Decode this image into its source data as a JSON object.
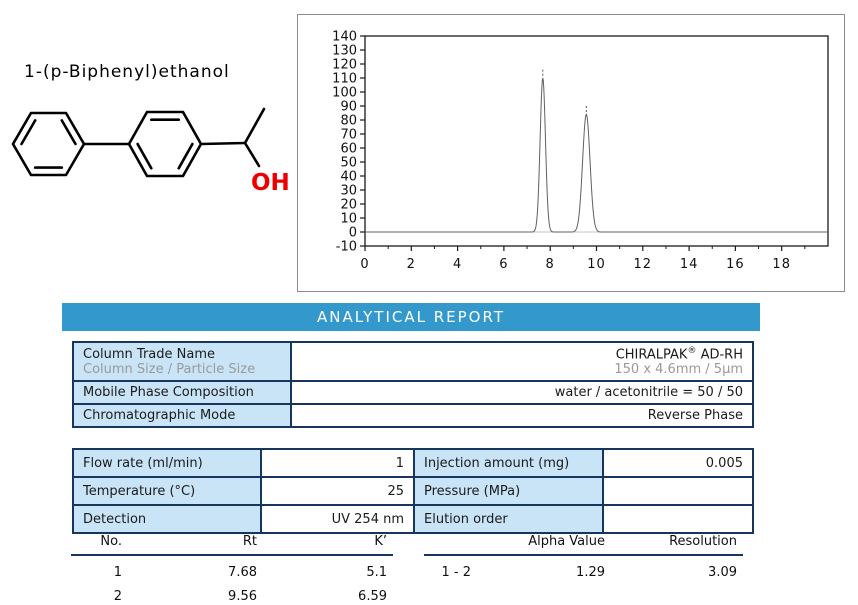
{
  "compound": {
    "name": "1-(p-Biphenyl)ethanol",
    "hydroxyl_label": "OH",
    "hydroxyl_color": "#ee0000"
  },
  "report": {
    "title": "ANALYTICAL REPORT",
    "header_bg": "#3399cc"
  },
  "chart_data": {
    "type": "line",
    "title": "",
    "xlabel": "",
    "ylabel": "",
    "xlim": [
      0,
      20
    ],
    "ylim": [
      -10,
      140
    ],
    "x_major_ticks": [
      0,
      2,
      4,
      6,
      8,
      10,
      12,
      14,
      16,
      18
    ],
    "x_minor_ticks": [
      1,
      3,
      5,
      7,
      9,
      11,
      13,
      15,
      17,
      19
    ],
    "y_ticks": [
      140,
      130,
      120,
      110,
      100,
      90,
      80,
      70,
      60,
      50,
      40,
      30,
      20,
      10,
      0,
      -10
    ],
    "baseline": 0,
    "grid": false,
    "legend": null,
    "peaks": [
      {
        "rt": 7.68,
        "height": 110,
        "sigma": 0.115
      },
      {
        "rt": 9.56,
        "height": 84,
        "sigma": 0.16
      }
    ],
    "peak_marker_offset": {
      "from": 1,
      "to": 6
    },
    "trace_color": "#606060",
    "baseline_color": "#c4c4c4"
  },
  "column_table": {
    "trade_name_label": "Column Trade Name",
    "size_label": "Column Size / Particle Size",
    "brand": "CHIRALPAK",
    "registered": "®",
    "model": " AD-RH",
    "size_value": "150 x 4.6mm / 5µm",
    "mobile_phase_label": "Mobile Phase Composition",
    "mobile_phase_value": "water / acetonitrile = 50 / 50",
    "mode_label": "Chromatographic Mode",
    "mode_value": "Reverse Phase"
  },
  "conditions": {
    "rows": [
      {
        "label1": "Flow rate (ml/min)",
        "value1": "1",
        "label2": "Injection amount (mg)",
        "value2": "0.005"
      },
      {
        "label1": "Temperature (°C)",
        "value1": "25",
        "label2": "Pressure (MPa)",
        "value2": ""
      },
      {
        "label1": "Detection",
        "value1": "UV 254 nm",
        "label2": "Elution order",
        "value2": ""
      }
    ]
  },
  "results": {
    "left": {
      "headers": [
        "No.",
        "Rt",
        "K’"
      ],
      "rows": [
        [
          "1",
          "7.68",
          "5.1"
        ],
        [
          "2",
          "9.56",
          "6.59"
        ]
      ]
    },
    "right": {
      "headers": [
        "",
        "Alpha Value",
        "Resolution"
      ],
      "rows": [
        [
          "1 - 2",
          "1.29",
          "3.09"
        ]
      ]
    }
  }
}
